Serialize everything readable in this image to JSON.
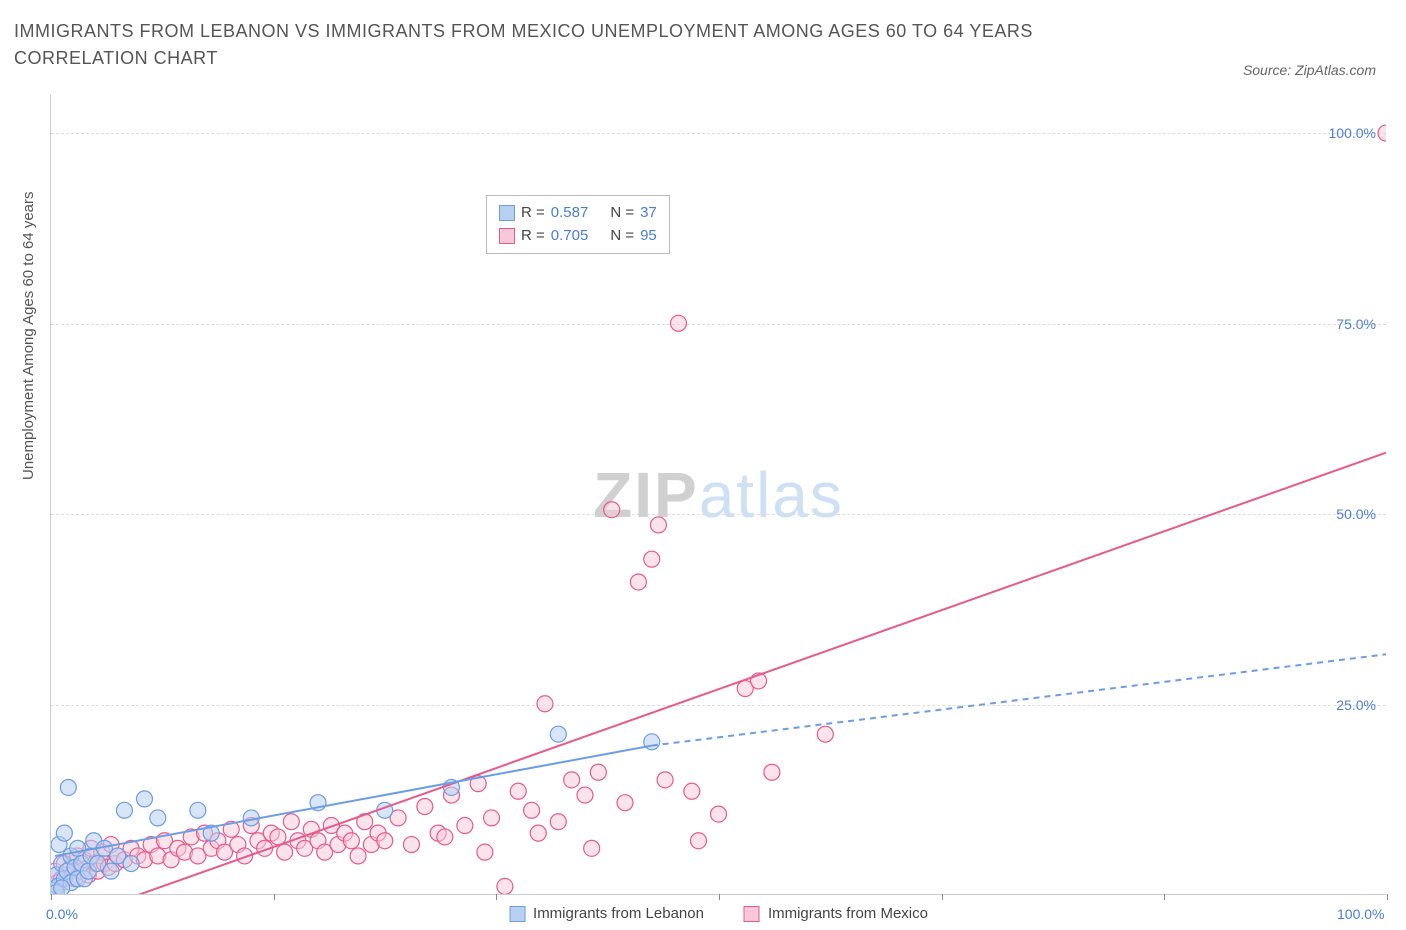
{
  "title": "IMMIGRANTS FROM LEBANON VS IMMIGRANTS FROM MEXICO UNEMPLOYMENT AMONG AGES 60 TO 64 YEARS CORRELATION CHART",
  "source": "Source: ZipAtlas.com",
  "ylabel": "Unemployment Among Ages 60 to 64 years",
  "watermark_zip": "ZIP",
  "watermark_atlas": "atlas",
  "chart": {
    "type": "scatter",
    "xlim": [
      0,
      100
    ],
    "ylim": [
      0,
      105
    ],
    "xtick_positions": [
      0,
      16.67,
      33.33,
      50,
      66.67,
      83.33,
      100
    ],
    "x_label_0": "0.0%",
    "x_label_100": "100.0%",
    "ytick_positions": [
      25,
      50,
      75,
      100
    ],
    "ytick_labels": [
      "25.0%",
      "50.0%",
      "75.0%",
      "100.0%"
    ],
    "grid_color": "#dddddd",
    "background_color": "#ffffff",
    "axis_color": "#cccccc",
    "tick_label_color": "#4a7dd8",
    "marker_radius": 8,
    "marker_stroke_width": 1.2,
    "line_width": 2
  },
  "series": {
    "lebanon": {
      "label": "Immigrants from Lebanon",
      "color_fill": "#b8d0f0",
      "color_stroke": "#6a9de8",
      "fill_opacity": 0.55,
      "R": "0.587",
      "N": "37",
      "points": [
        [
          0.3,
          0.5
        ],
        [
          0.4,
          2.5
        ],
        [
          0.5,
          1.0
        ],
        [
          0.6,
          6.5
        ],
        [
          0.8,
          4.0
        ],
        [
          1.0,
          8.0
        ],
        [
          1.0,
          2.0
        ],
        [
          1.2,
          3.0
        ],
        [
          1.3,
          14.0
        ],
        [
          1.5,
          5.0
        ],
        [
          1.5,
          1.5
        ],
        [
          1.8,
          3.5
        ],
        [
          2.0,
          6.0
        ],
        [
          2.0,
          2.0
        ],
        [
          2.3,
          4.0
        ],
        [
          2.5,
          2.0
        ],
        [
          2.8,
          3.0
        ],
        [
          3.0,
          5.0
        ],
        [
          3.2,
          7.0
        ],
        [
          3.5,
          4.0
        ],
        [
          4.0,
          6.0
        ],
        [
          4.5,
          3.0
        ],
        [
          5.0,
          5.0
        ],
        [
          5.5,
          11.0
        ],
        [
          6.0,
          4.0
        ],
        [
          7.0,
          12.5
        ],
        [
          8.0,
          10.0
        ],
        [
          11.0,
          11.0
        ],
        [
          12.0,
          8.0
        ],
        [
          15.0,
          10.0
        ],
        [
          20.0,
          12.0
        ],
        [
          25.0,
          11.0
        ],
        [
          30.0,
          14.0
        ],
        [
          38.0,
          21.0
        ],
        [
          45.0,
          20.0
        ],
        [
          0.4,
          0.2
        ],
        [
          0.8,
          0.8
        ]
      ],
      "trend": {
        "solid": [
          [
            0.3,
            5.0
          ],
          [
            45,
            19.5
          ]
        ],
        "dashed": [
          [
            45,
            19.5
          ],
          [
            100,
            31.5
          ]
        ],
        "dash_pattern": "6,5"
      }
    },
    "mexico": {
      "label": "Immigrants from Mexico",
      "color_fill": "#f8c8d8",
      "color_stroke": "#e85a8a",
      "fill_opacity": 0.5,
      "R": "0.705",
      "N": "95",
      "points": [
        [
          0.3,
          3.0
        ],
        [
          0.5,
          1.5
        ],
        [
          0.8,
          2.0
        ],
        [
          1.0,
          4.0
        ],
        [
          1.2,
          2.5
        ],
        [
          1.5,
          3.5
        ],
        [
          1.8,
          2.0
        ],
        [
          2.0,
          5.0
        ],
        [
          2.3,
          3.0
        ],
        [
          2.5,
          4.5
        ],
        [
          2.8,
          2.5
        ],
        [
          3.0,
          6.0
        ],
        [
          3.3,
          4.0
        ],
        [
          3.5,
          3.0
        ],
        [
          3.8,
          5.5
        ],
        [
          4.0,
          4.0
        ],
        [
          4.3,
          3.5
        ],
        [
          4.5,
          6.5
        ],
        [
          4.8,
          4.0
        ],
        [
          5.0,
          5.0
        ],
        [
          5.5,
          4.5
        ],
        [
          6.0,
          6.0
        ],
        [
          6.5,
          5.0
        ],
        [
          7.0,
          4.5
        ],
        [
          7.5,
          6.5
        ],
        [
          8.0,
          5.0
        ],
        [
          8.5,
          7.0
        ],
        [
          9.0,
          4.5
        ],
        [
          9.5,
          6.0
        ],
        [
          10.0,
          5.5
        ],
        [
          10.5,
          7.5
        ],
        [
          11.0,
          5.0
        ],
        [
          11.5,
          8.0
        ],
        [
          12.0,
          6.0
        ],
        [
          12.5,
          7.0
        ],
        [
          13.0,
          5.5
        ],
        [
          13.5,
          8.5
        ],
        [
          14.0,
          6.5
        ],
        [
          14.5,
          5.0
        ],
        [
          15.0,
          9.0
        ],
        [
          15.5,
          7.0
        ],
        [
          16.0,
          6.0
        ],
        [
          16.5,
          8.0
        ],
        [
          17.0,
          7.5
        ],
        [
          17.5,
          5.5
        ],
        [
          18.0,
          9.5
        ],
        [
          18.5,
          7.0
        ],
        [
          19.0,
          6.0
        ],
        [
          19.5,
          8.5
        ],
        [
          20.0,
          7.0
        ],
        [
          20.5,
          5.5
        ],
        [
          21.0,
          9.0
        ],
        [
          21.5,
          6.5
        ],
        [
          22.0,
          8.0
        ],
        [
          22.5,
          7.0
        ],
        [
          23.0,
          5.0
        ],
        [
          23.5,
          9.5
        ],
        [
          24.0,
          6.5
        ],
        [
          24.5,
          8.0
        ],
        [
          25.0,
          7.0
        ],
        [
          26.0,
          10.0
        ],
        [
          27.0,
          6.5
        ],
        [
          28.0,
          11.5
        ],
        [
          29.0,
          8.0
        ],
        [
          30.0,
          13.0
        ],
        [
          31.0,
          9.0
        ],
        [
          32.0,
          14.5
        ],
        [
          33.0,
          10.0
        ],
        [
          34.0,
          1.0
        ],
        [
          35.0,
          13.5
        ],
        [
          36.0,
          11.0
        ],
        [
          37.0,
          25.0
        ],
        [
          38.0,
          9.5
        ],
        [
          39.0,
          15.0
        ],
        [
          40.0,
          13.0
        ],
        [
          41.0,
          16.0
        ],
        [
          42.0,
          50.5
        ],
        [
          43.0,
          12.0
        ],
        [
          44.0,
          41.0
        ],
        [
          45.0,
          44.0
        ],
        [
          46.0,
          15.0
        ],
        [
          47.0,
          75.0
        ],
        [
          48.0,
          13.5
        ],
        [
          45.5,
          48.5
        ],
        [
          50.0,
          10.5
        ],
        [
          52.0,
          27.0
        ],
        [
          53.0,
          28.0
        ],
        [
          54.0,
          16.0
        ],
        [
          48.5,
          7.0
        ],
        [
          58.0,
          21.0
        ],
        [
          100.0,
          100.0
        ],
        [
          29.5,
          7.5
        ],
        [
          32.5,
          5.5
        ],
        [
          36.5,
          8.0
        ],
        [
          40.5,
          6.0
        ]
      ],
      "trend": {
        "solid": [
          [
            0.3,
            -4
          ],
          [
            100,
            58
          ]
        ]
      }
    }
  },
  "legend_top": {
    "r_label": "R =",
    "n_label": "N ="
  }
}
